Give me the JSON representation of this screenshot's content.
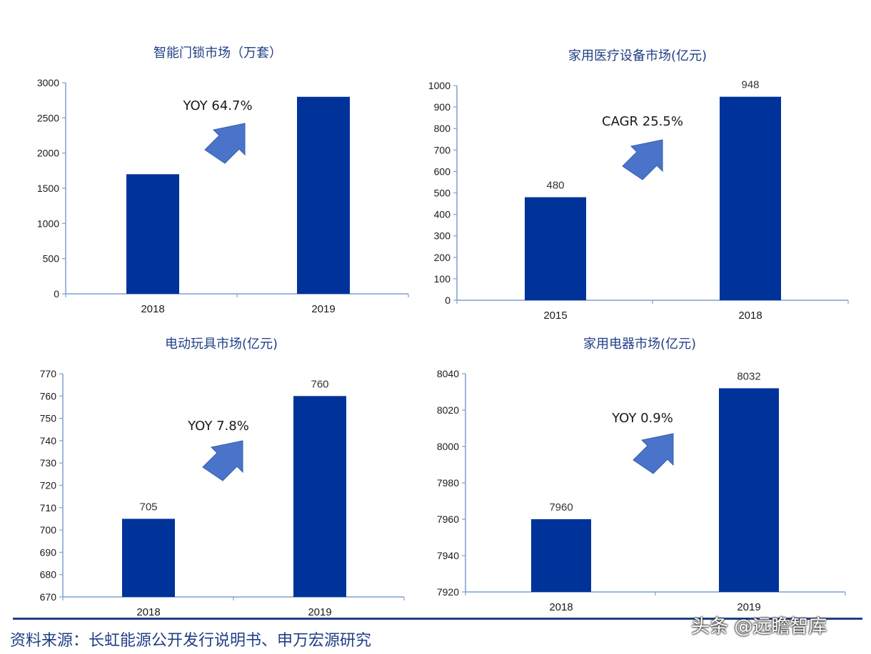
{
  "chart_data": [
    {
      "type": "bar",
      "title": "智能门锁市场（万套）",
      "categories": [
        "2018",
        "2019"
      ],
      "values": [
        1700,
        2800
      ],
      "data_labels": [
        "",
        ""
      ],
      "ylim": [
        0,
        3000
      ],
      "yticks": [
        0,
        500,
        1000,
        1500,
        2000,
        2500,
        3000
      ],
      "annotation": "YOY 64.7%",
      "bar_color": "#003399",
      "arrow_color": "#4a74c9",
      "grid": false
    },
    {
      "type": "bar",
      "title": "家用医疗设备市场(亿元)",
      "categories": [
        "2015",
        "2018"
      ],
      "values": [
        480,
        948
      ],
      "data_labels": [
        "480",
        "948"
      ],
      "ylim": [
        0,
        1000
      ],
      "yticks": [
        0,
        100,
        200,
        300,
        400,
        500,
        600,
        700,
        800,
        900,
        1000
      ],
      "annotation": "CAGR 25.5%",
      "bar_color": "#003399",
      "arrow_color": "#4a74c9",
      "grid": false
    },
    {
      "type": "bar",
      "title": "电动玩具市场(亿元)",
      "categories": [
        "2018",
        "2019"
      ],
      "values": [
        705,
        760
      ],
      "data_labels": [
        "705",
        "760"
      ],
      "ylim": [
        670,
        770
      ],
      "yticks": [
        670,
        680,
        690,
        700,
        710,
        720,
        730,
        740,
        750,
        760,
        770
      ],
      "annotation": "YOY 7.8%",
      "bar_color": "#003399",
      "arrow_color": "#4a74c9",
      "grid": false
    },
    {
      "type": "bar",
      "title": "家用电器市场(亿元)",
      "categories": [
        "2018",
        "2019"
      ],
      "values": [
        7960,
        8032
      ],
      "data_labels": [
        "7960",
        "8032"
      ],
      "ylim": [
        7920,
        8040
      ],
      "yticks": [
        7920,
        7940,
        7960,
        7980,
        8000,
        8020,
        8040
      ],
      "annotation": "YOY 0.9%",
      "bar_color": "#003399",
      "arrow_color": "#4a74c9",
      "grid": false
    }
  ],
  "source": "资料来源：长虹能源公开发行说明书、申万宏源研究",
  "watermark": "头条 @远瞻智库",
  "colors": {
    "footer": "#1f3f86",
    "axis": "#7f9fd0",
    "text": "#1f3f86"
  }
}
